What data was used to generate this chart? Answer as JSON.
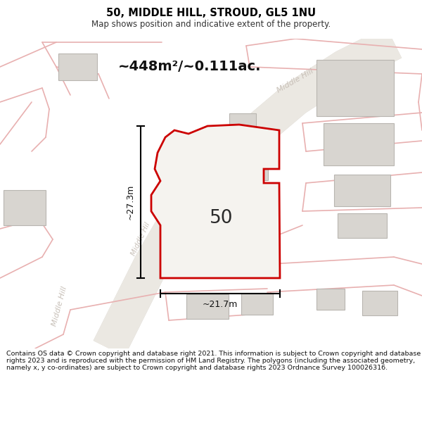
{
  "title": "50, MIDDLE HILL, STROUD, GL5 1NU",
  "subtitle": "Map shows position and indicative extent of the property.",
  "area_label": "~448m²/~0.111ac.",
  "number_label": "50",
  "dim_horizontal": "~21.7m",
  "dim_vertical": "~27.3m",
  "footer_text": "Contains OS data © Crown copyright and database right 2021. This information is subject to Crown copyright and database rights 2023 and is reproduced with the permission of HM Land Registry. The polygons (including the associated geometry, namely x, y co-ordinates) are subject to Crown copyright and database rights 2023 Ordnance Survey 100026316.",
  "bg_color": "#ffffff",
  "map_bg": "#f8f8f5",
  "road_fill": "#ebe8e2",
  "road_edge": "#d8d4ce",
  "building_fill": "#d8d5d0",
  "building_edge": "#b8b5b0",
  "property_fill": "#f5f3ef",
  "property_edge": "#cc0000",
  "road_label_color": "#c8c0b8",
  "pink_line": "#e8b0b0",
  "title_color": "#000000",
  "footer_color": "#111111"
}
